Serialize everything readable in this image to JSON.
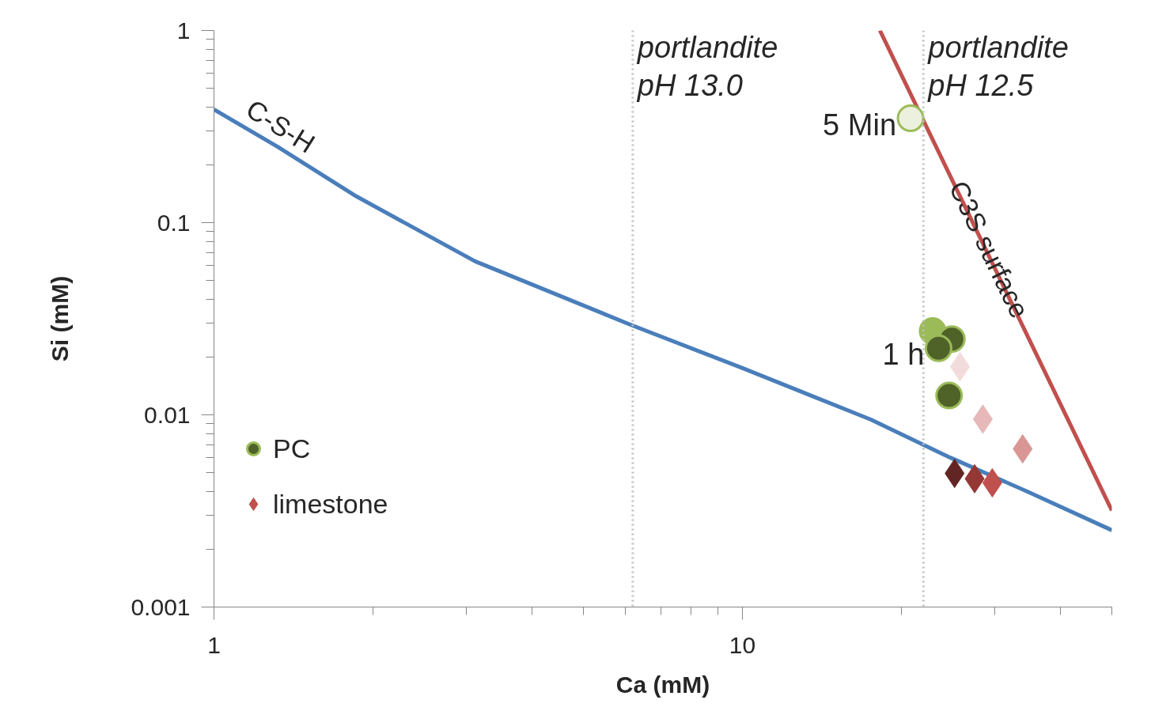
{
  "chart_data": {
    "type": "scatter",
    "xlabel": "Ca (mM)",
    "ylabel": "Si (mM)",
    "log": "xy",
    "xlim": [
      1,
      50
    ],
    "ylim": [
      0.001,
      1
    ],
    "xticks": [
      1,
      10
    ],
    "yticks": [
      1,
      0.1,
      0.01,
      0.001
    ],
    "grid": false,
    "legend": "bottom left",
    "series": [
      {
        "name": "C-S-H",
        "type": "line",
        "color": "#4a7ebb",
        "line_style": "solid",
        "x": [
          1,
          1.32,
          1.86,
          3.12,
          6.15,
          10,
          17.5,
          24.7,
          34.8,
          50
        ],
        "values": [
          0.388,
          0.248,
          0.137,
          0.0629,
          0.0294,
          0.0175,
          0.00945,
          0.006,
          0.00396,
          0.00251
        ]
      },
      {
        "name": "C3S surface",
        "type": "line",
        "color": "#c0504d",
        "line_style": "solid",
        "x": [
          18.2,
          50
        ],
        "values": [
          1,
          0.00318
        ]
      },
      {
        "name": "PC",
        "marker": "circle",
        "color": "#4f6228",
        "x": [
          20.8,
          22.9,
          24.9,
          23.5,
          24.6
        ],
        "values": [
          0.349,
          0.0273,
          0.0248,
          0.0222,
          0.0126
        ],
        "colors": [
          "#ebf1de",
          "#9bbb59",
          "#4f6228",
          "#4f6228",
          "#4f6228"
        ]
      },
      {
        "name": "limestone",
        "marker": "diamond",
        "color": "#c0504d",
        "x": [
          25.8,
          28.5,
          33.9,
          25.2,
          27.5,
          29.7
        ],
        "values": [
          0.0178,
          0.0095,
          0.00665,
          0.00496,
          0.00465,
          0.00443
        ],
        "colors": [
          "#f2dcdb",
          "#e6b9b8",
          "#d99694",
          "#632523",
          "#953735",
          "#c0504d"
        ]
      }
    ],
    "ref_lines": [
      {
        "axis": "x",
        "value": 6.2,
        "label": "portlandite\npH 13.0",
        "color": "#bfbfbf",
        "line_style": "dotted"
      },
      {
        "axis": "x",
        "value": 22,
        "label": "portlandite\npH 12.5",
        "color": "#bfbfbf",
        "line_style": "dotted"
      }
    ],
    "annotations": [
      {
        "text": "5 Min",
        "x": 20.8,
        "y": 0.349
      },
      {
        "text": "1 h",
        "x": 23.5,
        "y": 0.0222
      }
    ]
  }
}
